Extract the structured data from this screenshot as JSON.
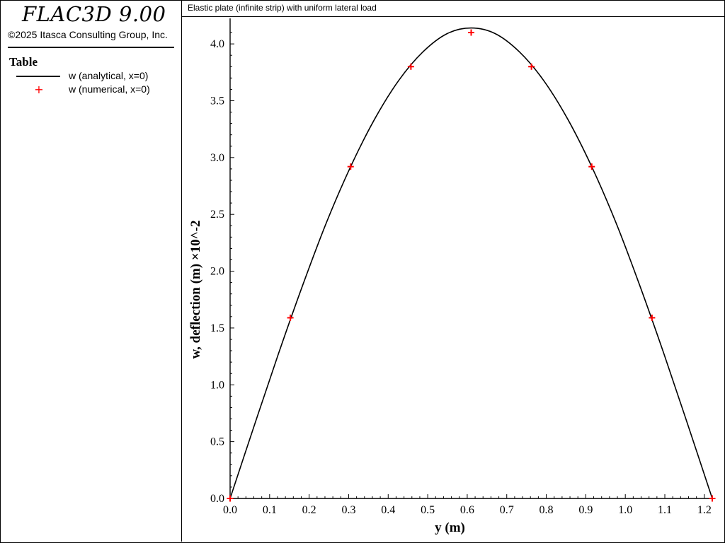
{
  "app": {
    "title": "FLAC3D 9.00",
    "copyright": "©2025 Itasca Consulting Group, Inc."
  },
  "legend": {
    "title": "Table",
    "items": [
      {
        "label": "w (analytical, x=0)",
        "style": "line",
        "color": "#000000"
      },
      {
        "label": "w (numerical, x=0)",
        "style": "plus-marker",
        "color": "#ff0000"
      }
    ]
  },
  "chart_data": {
    "type": "line",
    "title": "Elastic plate (infinite strip) with uniform lateral load",
    "xlabel": "y (m)",
    "ylabel": "w, deflection (m)",
    "ylabel_multiplier": "×10^-2",
    "xlim": [
      0.0,
      1.22
    ],
    "ylim": [
      0.0,
      4.15
    ],
    "xticks": [
      "0.0",
      "0.1",
      "0.2",
      "0.3",
      "0.4",
      "0.5",
      "0.6",
      "0.7",
      "0.8",
      "0.9",
      "1.0",
      "1.1",
      "1.2"
    ],
    "yticks": [
      "0.0",
      "0.5",
      "1.0",
      "1.5",
      "2.0",
      "2.5",
      "3.0",
      "3.5",
      "4.0"
    ],
    "grid": false,
    "series": [
      {
        "name": "w (analytical, x=0)",
        "kind": "curve",
        "color": "#000000",
        "x": [
          0.0,
          0.061,
          0.122,
          0.183,
          0.244,
          0.305,
          0.366,
          0.427,
          0.488,
          0.549,
          0.61,
          0.671,
          0.732,
          0.793,
          0.854,
          0.915,
          0.976,
          1.037,
          1.098,
          1.159,
          1.22
        ],
        "y": [
          0.0,
          0.64,
          1.27,
          1.87,
          2.43,
          2.92,
          3.34,
          3.68,
          3.93,
          4.09,
          4.14,
          4.09,
          3.93,
          3.68,
          3.34,
          2.92,
          2.43,
          1.87,
          1.27,
          0.64,
          0.0
        ]
      },
      {
        "name": "w (numerical, x=0)",
        "kind": "markers",
        "marker": "+",
        "color": "#ff0000",
        "x": [
          0.0,
          0.1525,
          0.305,
          0.4575,
          0.61,
          0.7625,
          0.915,
          1.0675,
          1.22
        ],
        "y": [
          0.0,
          1.59,
          2.92,
          3.8,
          4.1,
          3.8,
          2.92,
          1.59,
          0.0
        ]
      }
    ]
  }
}
